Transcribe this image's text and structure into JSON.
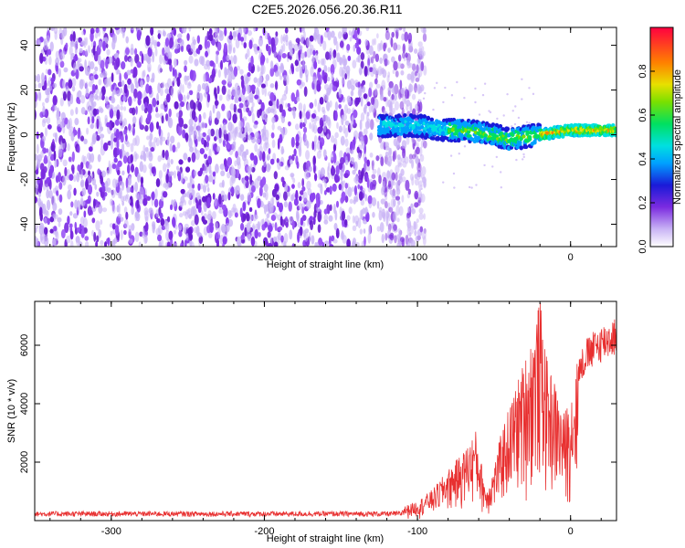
{
  "title": "C2E5.2026.056.20.36.R11",
  "chart_data": [
    {
      "type": "heatmap",
      "xlabel": "Height of straight line (km)",
      "ylabel": "Frequency (Hz)",
      "xlim": [
        -350,
        30
      ],
      "ylim": [
        -50,
        48
      ],
      "x_ticks": [
        -300,
        -200,
        -100,
        0
      ],
      "y_ticks": [
        -40,
        -20,
        0,
        20,
        40
      ],
      "x_tick_labels": [
        "-300",
        "-200",
        "-100",
        "0"
      ],
      "y_tick_labels": [
        "-40",
        "-20",
        "0",
        "20",
        "40"
      ],
      "colorbar": {
        "label": "Normalized spectral amplitude",
        "range": [
          0,
          1
        ],
        "ticks": [
          0.0,
          0.2,
          0.4,
          0.6,
          0.8
        ],
        "tick_labels": [
          "0.0",
          "0.2",
          "0.4",
          "0.6",
          "0.8"
        ],
        "colormap": "rainbow"
      },
      "noise_region_x": [
        -350,
        -100
      ],
      "signal_trace": [
        {
          "x": -125,
          "y": 4
        },
        {
          "x": -110,
          "y": 4
        },
        {
          "x": -100,
          "y": 4
        },
        {
          "x": -90,
          "y": 3
        },
        {
          "x": -80,
          "y": 2
        },
        {
          "x": -70,
          "y": 2
        },
        {
          "x": -60,
          "y": 1
        },
        {
          "x": -50,
          "y": 0
        },
        {
          "x": -40,
          "y": -2
        },
        {
          "x": -30,
          "y": -1
        },
        {
          "x": -20,
          "y": 0
        },
        {
          "x": -10,
          "y": 1
        },
        {
          "x": 0,
          "y": 2
        },
        {
          "x": 10,
          "y": 2
        },
        {
          "x": 20,
          "y": 2
        },
        {
          "x": 30,
          "y": 2
        }
      ]
    },
    {
      "type": "line",
      "xlabel": "Height of straight line (km)",
      "ylabel": "SNR (10 * v/v)",
      "xlim": [
        -350,
        30
      ],
      "ylim": [
        0,
        7500
      ],
      "x_ticks": [
        -300,
        -200,
        -100,
        0
      ],
      "y_ticks": [
        2000,
        4000,
        6000
      ],
      "x_tick_labels": [
        "-300",
        "-200",
        "-100",
        "0"
      ],
      "y_tick_labels": [
        "2000",
        "4000",
        "6000"
      ],
      "color": "#e83030",
      "envelope": [
        {
          "x": -350,
          "y": 200
        },
        {
          "x": -300,
          "y": 200
        },
        {
          "x": -250,
          "y": 200
        },
        {
          "x": -200,
          "y": 200
        },
        {
          "x": -150,
          "y": 220
        },
        {
          "x": -120,
          "y": 300
        },
        {
          "x": -110,
          "y": 450
        },
        {
          "x": -100,
          "y": 650
        },
        {
          "x": -90,
          "y": 1050
        },
        {
          "x": -80,
          "y": 1700
        },
        {
          "x": -70,
          "y": 2300
        },
        {
          "x": -62,
          "y": 3000
        },
        {
          "x": -55,
          "y": 1000
        },
        {
          "x": -50,
          "y": 1800
        },
        {
          "x": -45,
          "y": 3000
        },
        {
          "x": -40,
          "y": 3800
        },
        {
          "x": -35,
          "y": 4600
        },
        {
          "x": -30,
          "y": 5400
        },
        {
          "x": -25,
          "y": 6200
        },
        {
          "x": -20,
          "y": 7400
        },
        {
          "x": -15,
          "y": 5200
        },
        {
          "x": -10,
          "y": 4600
        },
        {
          "x": -5,
          "y": 3500
        },
        {
          "x": 0,
          "y": 4200
        },
        {
          "x": 5,
          "y": 5500
        },
        {
          "x": 10,
          "y": 6100
        },
        {
          "x": 20,
          "y": 6600
        },
        {
          "x": 30,
          "y": 6900
        }
      ]
    }
  ]
}
